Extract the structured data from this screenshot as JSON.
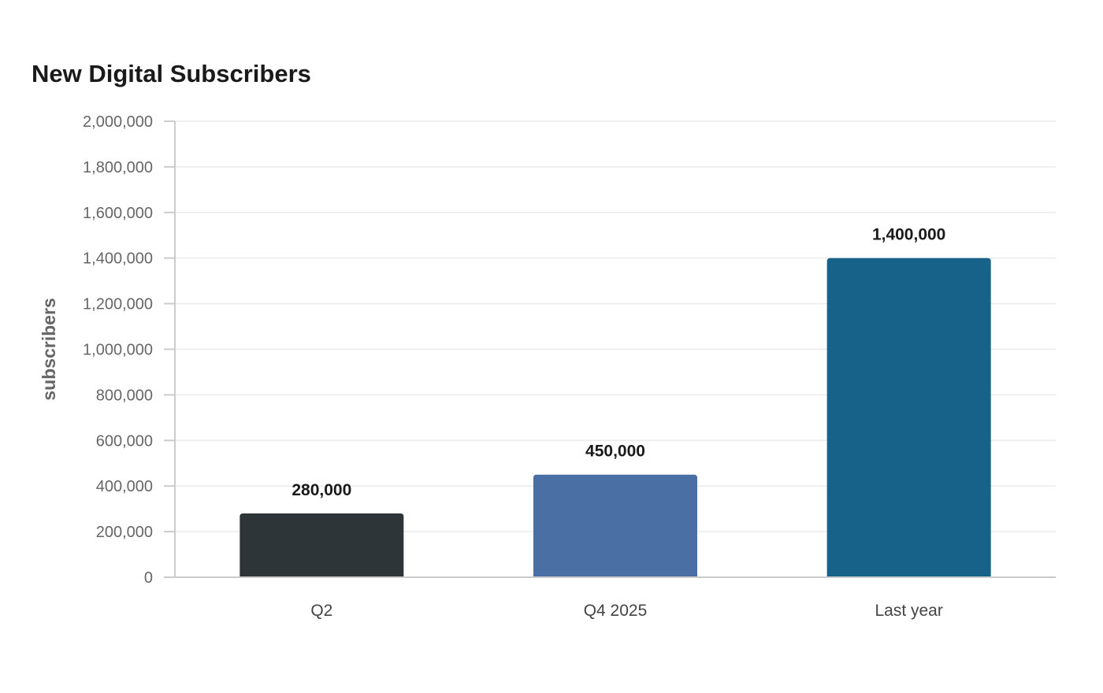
{
  "chart_data": {
    "type": "bar",
    "title": "New Digital Subscribers",
    "xlabel": "",
    "ylabel": "subscribers",
    "categories": [
      "Q2",
      "Q4 2025",
      "Last year"
    ],
    "values": [
      280000,
      450000,
      1400000
    ],
    "value_labels": [
      "280,000",
      "450,000",
      "1,400,000"
    ],
    "colors": [
      "#2e3538",
      "#4a6fa5",
      "#176289"
    ],
    "ylim": [
      0,
      2000000
    ],
    "yticks": [
      0,
      200000,
      400000,
      600000,
      800000,
      1000000,
      1200000,
      1400000,
      1600000,
      1800000,
      2000000
    ],
    "ytick_labels": [
      "0",
      "200,000",
      "400,000",
      "600,000",
      "800,000",
      "1,000,000",
      "1,200,000",
      "1,400,000",
      "1,600,000",
      "1,800,000",
      "2,000,000"
    ],
    "grid": true,
    "legend": "none"
  }
}
